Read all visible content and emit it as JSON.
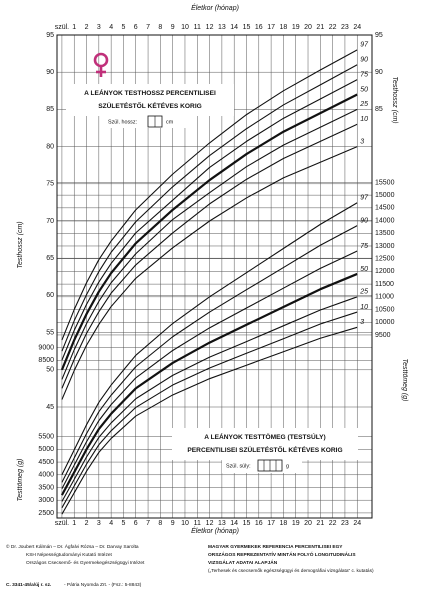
{
  "chart_data": [
    {
      "type": "line",
      "title": "A LEÁNYOK TESTHOSSZ PERCENTILISEI",
      "subtitle": "SZÜLETÉSTŐL KÉTÉVES KORIG",
      "birth_label": "Szül. hossz:",
      "unit_label": "cm",
      "xlabel": "Életkor (hónap)",
      "ylabel": "Testhossz (cm)",
      "x": [
        0,
        1,
        2,
        3,
        4,
        6,
        9,
        12,
        15,
        18,
        21,
        24
      ],
      "xlim": [
        -0.4,
        25.2
      ],
      "xticks": [
        {
          "value": 0,
          "label": "szül."
        },
        1,
        2,
        3,
        4,
        5,
        6,
        7,
        8,
        9,
        10,
        11,
        12,
        13,
        14,
        15,
        16,
        17,
        18,
        19,
        20,
        21,
        22,
        23,
        24
      ],
      "ylim": [
        45,
        95
      ],
      "yticks": [
        45,
        50,
        55,
        60,
        65,
        70,
        75,
        80,
        85,
        90,
        95
      ],
      "grid": true,
      "series": [
        {
          "name": "97",
          "color": "#111111",
          "line_width": 1.1,
          "values": [
            54,
            58.1,
            61.7,
            64.8,
            67.3,
            71.5,
            76.3,
            80.5,
            84.3,
            87.5,
            90.3,
            93
          ]
        },
        {
          "name": "90",
          "color": "#111111",
          "line_width": 1.1,
          "values": [
            52.5,
            56.6,
            60.1,
            63.2,
            65.8,
            69.9,
            74.6,
            78.8,
            82.4,
            85.6,
            88.3,
            91
          ]
        },
        {
          "name": "75",
          "color": "#111111",
          "line_width": 1.1,
          "values": [
            51.3,
            55.3,
            58.8,
            61.8,
            64.3,
            68.4,
            72.8,
            77.2,
            80.7,
            83.8,
            86.4,
            89
          ]
        },
        {
          "name": "50",
          "color": "#111111",
          "line_width": 2.2,
          "values": [
            50,
            54,
            57.5,
            60.5,
            63,
            67,
            71.5,
            75.5,
            79,
            82,
            84.5,
            87
          ]
        },
        {
          "name": "25",
          "color": "#111111",
          "line_width": 1.1,
          "values": [
            48.7,
            52.7,
            56.2,
            59.2,
            61.7,
            65.6,
            70.2,
            73.8,
            77.3,
            80.2,
            82.6,
            85
          ]
        },
        {
          "name": "10",
          "color": "#111111",
          "line_width": 1.1,
          "values": [
            47.5,
            51.4,
            54.9,
            57.8,
            60.3,
            64.1,
            68.4,
            72.3,
            75.6,
            78.4,
            80.7,
            83
          ]
        },
        {
          "name": "3",
          "color": "#111111",
          "line_width": 1.1,
          "values": [
            46,
            49.9,
            53.3,
            56.1,
            58.5,
            62.3,
            66.4,
            70,
            73.1,
            75.8,
            77.9,
            80
          ]
        }
      ]
    },
    {
      "type": "line",
      "title": "A LEÁNYOK TESTTÖMEG (TESTSÚLY)",
      "subtitle": "PERCENTILISEI SZÜLETÉSTŐL KÉTÉVES KORIG",
      "birth_label": "Szül. súly:",
      "unit_label": "g",
      "xlabel": "Életkor (hónap)",
      "ylabel": "Testtömeg (g)",
      "x": [
        0,
        1,
        2,
        3,
        4,
        6,
        9,
        12,
        15,
        18,
        21,
        24
      ],
      "xlim": [
        -0.4,
        25.2
      ],
      "xticks": [
        {
          "value": 0,
          "label": "szül."
        },
        1,
        2,
        3,
        4,
        5,
        6,
        7,
        8,
        9,
        10,
        11,
        12,
        13,
        14,
        15,
        16,
        17,
        18,
        19,
        20,
        21,
        22,
        23,
        24
      ],
      "ylim": [
        2300,
        16500
      ],
      "yticks": [
        2500,
        3000,
        3500,
        4000,
        4500,
        5000,
        5500,
        8500,
        9000,
        9500,
        10000,
        10500,
        11000,
        11500,
        12000,
        12500,
        13000,
        13500,
        14000,
        14500,
        15000,
        15500
      ],
      "grid": true,
      "series": [
        {
          "name": "97",
          "color": "#111111",
          "line_width": 1.1,
          "values": [
            4000,
            4980,
            5970,
            6850,
            7530,
            8700,
            9950,
            11000,
            11950,
            12900,
            13850,
            14700
          ]
        },
        {
          "name": "90",
          "color": "#111111",
          "line_width": 1.1,
          "values": [
            3700,
            4660,
            5620,
            6480,
            7130,
            8250,
            9430,
            10400,
            11280,
            12150,
            13030,
            13800
          ]
        },
        {
          "name": "75",
          "color": "#111111",
          "line_width": 1.1,
          "values": [
            3450,
            4380,
            5300,
            6130,
            6760,
            7810,
            8890,
            9780,
            10560,
            11340,
            12120,
            12800
          ]
        },
        {
          "name": "50",
          "color": "#111111",
          "line_width": 2.2,
          "values": [
            3200,
            4100,
            5000,
            5800,
            6400,
            7400,
            8400,
            9200,
            9900,
            10600,
            11300,
            11900
          ]
        },
        {
          "name": "25",
          "color": "#111111",
          "line_width": 1.1,
          "values": [
            2950,
            3820,
            4700,
            5470,
            6040,
            6990,
            7910,
            8630,
            9240,
            9860,
            10480,
            11000
          ]
        },
        {
          "name": "10",
          "color": "#111111",
          "line_width": 1.1,
          "values": [
            2700,
            3560,
            4420,
            5180,
            5730,
            6650,
            7530,
            8200,
            8780,
            9350,
            9930,
            10400
          ]
        },
        {
          "name": "3",
          "color": "#111111",
          "line_width": 1.1,
          "values": [
            2450,
            3290,
            4140,
            4880,
            5430,
            6310,
            7140,
            7780,
            8310,
            8840,
            9370,
            9800
          ]
        }
      ]
    }
  ],
  "footer": {
    "authors": "© Dr. Joubert Kálmán – Dr. Ágfalvi Rózsa – Dr. Darvay Sarolta",
    "institute_1": "KSH Népességtudományi Kutató Intézet",
    "institute_2": "Országos Csecsemő- és Gyermekegészségügyi Intézet",
    "source_1": "MAGYAR GYERMEKEK REFERENCIA PERCENTILISEI EGY",
    "source_2": "ORSZÁGOS REPREZENTATÍV MINTÁN FOLYÓ LONGITUDINÁLIS",
    "source_3": "VIZSGÁLAT ADATAI ALAPJÁN",
    "source_4": "(„Terhesek és csecsemők egészségügyi és demográfiai vizsgálata” c. kutatás)",
    "code": "C. 3341-45/a/új r. sz.",
    "printer": "- Pátria Nyomda Zrt. - (Fsz.: 5-8843)"
  }
}
